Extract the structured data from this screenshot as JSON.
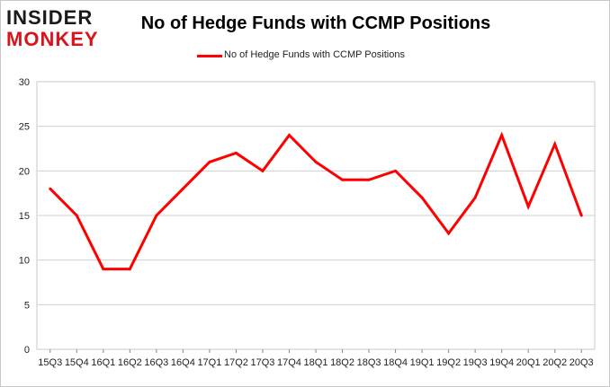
{
  "logo": {
    "line1": "INSIDER",
    "line2": "MONKEY"
  },
  "chart_data": {
    "type": "line",
    "title": "No of Hedge Funds with CCMP Positions",
    "xlabel": "",
    "ylabel": "",
    "categories": [
      "15Q3",
      "15Q4",
      "16Q1",
      "16Q2",
      "16Q3",
      "16Q4",
      "17Q1",
      "17Q2",
      "17Q3",
      "17Q4",
      "18Q1",
      "18Q2",
      "18Q3",
      "18Q4",
      "19Q1",
      "19Q2",
      "19Q3",
      "19Q4",
      "20Q1",
      "20Q2",
      "20Q3"
    ],
    "series": [
      {
        "name": "No of Hedge Funds with CCMP Positions",
        "color": "#ff0000",
        "values": [
          18,
          15,
          9,
          9,
          15,
          18,
          21,
          22,
          20,
          24,
          21,
          19,
          19,
          20,
          17,
          13,
          17,
          24,
          16,
          23,
          15
        ]
      }
    ],
    "ylim": [
      0,
      30
    ],
    "yticks": [
      "0",
      "5",
      "10",
      "15",
      "20",
      "25",
      "30"
    ],
    "grid": true,
    "legend": "top-center"
  }
}
